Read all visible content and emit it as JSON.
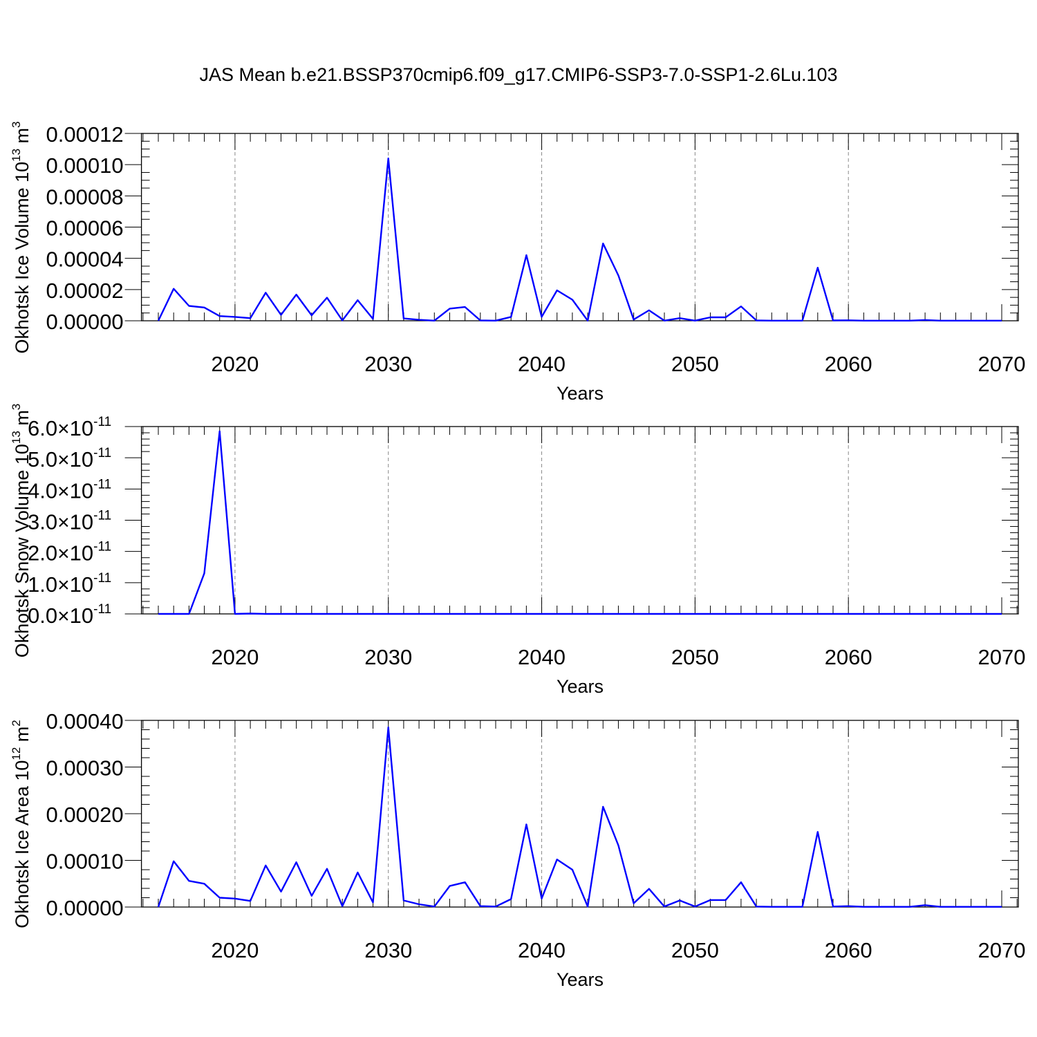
{
  "title": "JAS Mean b.e21.BSSP370cmip6.f09_g17.CMIP6-SSP3-7.0-SSP1-2.6Lu.103",
  "line_color": "#0000ff",
  "chart_data": [
    {
      "type": "line",
      "ylabel": "Okhotsk Ice Volume",
      "yunit_base": "10",
      "yunit_exp": "13",
      "yunit_sym": "m",
      "yunit_sym_exp": "3",
      "xlabel": "Years",
      "xlim": [
        2015,
        2070
      ],
      "ylim": [
        0,
        0.00012
      ],
      "yticks": [
        0,
        2e-05,
        4e-05,
        6e-05,
        8e-05,
        0.0001,
        0.00012
      ],
      "ytick_labels": [
        "0.00000",
        "0.00002",
        "0.00004",
        "0.00006",
        "0.00008",
        "0.00010",
        "0.00012"
      ],
      "xticks": [
        2020,
        2030,
        2040,
        2050,
        2060,
        2070
      ],
      "xtick_labels": [
        "2020",
        "2030",
        "2040",
        "2050",
        "2060",
        "2070"
      ],
      "grid": "vertical dashed at major x ticks",
      "x": [
        2015,
        2016,
        2017,
        2018,
        2019,
        2020,
        2021,
        2022,
        2023,
        2024,
        2025,
        2026,
        2027,
        2028,
        2029,
        2030,
        2031,
        2032,
        2033,
        2034,
        2035,
        2036,
        2037,
        2038,
        2039,
        2040,
        2041,
        2042,
        2043,
        2044,
        2045,
        2046,
        2047,
        2048,
        2049,
        2050,
        2051,
        2052,
        2053,
        2054,
        2055,
        2056,
        2057,
        2058,
        2059,
        2060,
        2061,
        2062,
        2063,
        2064,
        2065,
        2066,
        2067,
        2068,
        2069,
        2070
      ],
      "y": [
        0,
        2.05e-05,
        9.5e-06,
        8.5e-06,
        3e-06,
        2.5e-06,
        1.7e-06,
        1.8e-05,
        3.8e-06,
        1.68e-05,
        3.5e-06,
        1.48e-05,
        2e-07,
        1.32e-05,
        1.2e-06,
        0.000104,
        1.5e-06,
        6e-07,
        1e-07,
        7.8e-06,
        8.8e-06,
        2e-07,
        1e-07,
        2.5e-06,
        4.2e-05,
        2.5e-06,
        1.95e-05,
        1.35e-05,
        1e-07,
        4.95e-05,
        2.9e-05,
        8e-07,
        6.7e-06,
        1e-07,
        1.7e-06,
        1e-07,
        2.2e-06,
        2.2e-06,
        9.2e-06,
        2e-07,
        1e-07,
        1e-07,
        1e-07,
        3.4e-05,
        2e-07,
        3e-07,
        1e-07,
        1e-07,
        1e-07,
        1e-07,
        5e-07,
        1e-07,
        1e-07,
        1e-07,
        1e-07,
        1e-07
      ]
    },
    {
      "type": "line",
      "ylabel": "Okhotsk Snow Volume",
      "yunit_base": "10",
      "yunit_exp": "13",
      "yunit_sym": "m",
      "yunit_sym_exp": "3",
      "xlabel": "Years",
      "xlim": [
        2015,
        2070
      ],
      "ylim": [
        0,
        6e-11
      ],
      "yticks": [
        0,
        1e-11,
        2e-11,
        3e-11,
        4e-11,
        5e-11,
        6e-11
      ],
      "ytick_labels": [
        "0.0",
        "1.0",
        "2.0",
        "3.0",
        "4.0",
        "5.0",
        "6.0"
      ],
      "ytick_times": "×",
      "ytick_base": "10",
      "ytick_exp": "-11",
      "xticks": [
        2020,
        2030,
        2040,
        2050,
        2060,
        2070
      ],
      "xtick_labels": [
        "2020",
        "2030",
        "2040",
        "2050",
        "2060",
        "2070"
      ],
      "grid": "vertical dashed at major x ticks",
      "x": [
        2015,
        2016,
        2017,
        2018,
        2019,
        2020,
        2021,
        2022,
        2023,
        2024,
        2025,
        2026,
        2027,
        2028,
        2029,
        2030,
        2031,
        2032,
        2033,
        2034,
        2035,
        2036,
        2037,
        2038,
        2039,
        2040,
        2041,
        2042,
        2043,
        2044,
        2045,
        2046,
        2047,
        2048,
        2049,
        2050,
        2051,
        2052,
        2053,
        2054,
        2055,
        2056,
        2057,
        2058,
        2059,
        2060,
        2061,
        2062,
        2063,
        2064,
        2065,
        2066,
        2067,
        2068,
        2069,
        2070
      ],
      "y": [
        0,
        0,
        0,
        1.3e-11,
        5.85e-11,
        0,
        1e-13,
        0,
        0,
        0,
        0,
        0,
        0,
        0,
        0,
        0,
        0,
        0,
        0,
        0,
        0,
        0,
        0,
        0,
        0,
        0,
        0,
        0,
        0,
        0,
        0,
        0,
        0,
        0,
        0,
        0,
        0,
        0,
        0,
        0,
        0,
        0,
        0,
        0,
        0,
        0,
        0,
        0,
        0,
        0,
        0,
        0,
        0,
        0,
        0,
        0
      ]
    },
    {
      "type": "line",
      "ylabel": "Okhotsk Ice Area",
      "yunit_base": "10",
      "yunit_exp": "12",
      "yunit_sym": "m",
      "yunit_sym_exp": "2",
      "xlabel": "Years",
      "xlim": [
        2015,
        2070
      ],
      "ylim": [
        0,
        0.0004
      ],
      "yticks": [
        0,
        0.0001,
        0.0002,
        0.0003,
        0.0004
      ],
      "ytick_labels": [
        "0.00000",
        "0.00010",
        "0.00020",
        "0.00030",
        "0.00040"
      ],
      "xticks": [
        2020,
        2030,
        2040,
        2050,
        2060,
        2070
      ],
      "xtick_labels": [
        "2020",
        "2030",
        "2040",
        "2050",
        "2060",
        "2070"
      ],
      "grid": "vertical dashed at major x ticks",
      "x": [
        2015,
        2016,
        2017,
        2018,
        2019,
        2020,
        2021,
        2022,
        2023,
        2024,
        2025,
        2026,
        2027,
        2028,
        2029,
        2030,
        2031,
        2032,
        2033,
        2034,
        2035,
        2036,
        2037,
        2038,
        2039,
        2040,
        2041,
        2042,
        2043,
        2044,
        2045,
        2046,
        2047,
        2048,
        2049,
        2050,
        2051,
        2052,
        2053,
        2054,
        2055,
        2056,
        2057,
        2058,
        2059,
        2060,
        2061,
        2062,
        2063,
        2064,
        2065,
        2066,
        2067,
        2068,
        2069,
        2070
      ],
      "y": [
        0,
        9.8e-05,
        5.6e-05,
        5e-05,
        2e-05,
        1.8e-05,
        1.3e-05,
        8.9e-05,
        3.3e-05,
        9.6e-05,
        2.4e-05,
        8.2e-05,
        2e-06,
        7.4e-05,
        1e-05,
        0.000385,
        1.4e-05,
        6e-06,
        1e-06,
        4.5e-05,
        5.3e-05,
        2e-06,
        1e-06,
        1.7e-05,
        0.000177,
        1.8e-05,
        0.000102,
        8e-05,
        1e-06,
        0.000215,
        0.000132,
        8e-06,
        3.9e-05,
        1e-06,
        1.4e-05,
        1e-06,
        1.5e-05,
        1.5e-05,
        5.3e-05,
        1e-06,
        5e-07,
        5e-07,
        5e-07,
        0.000161,
        1e-06,
        2e-06,
        5e-07,
        5e-07,
        5e-07,
        5e-07,
        4e-06,
        5e-07,
        5e-07,
        5e-07,
        5e-07,
        5e-07
      ]
    }
  ]
}
